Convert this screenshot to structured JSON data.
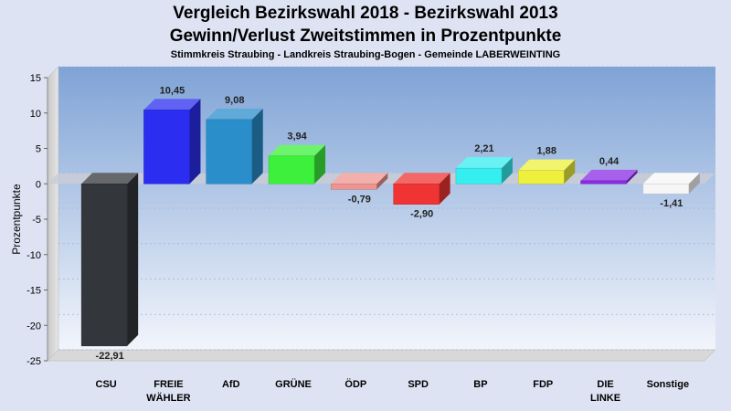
{
  "chart_data": {
    "type": "bar",
    "title": "Vergleich Bezirkswahl 2018 - Bezirkswahl 2013",
    "title2": "Gewinn/Verlust Zweitstimmen in Prozentpunkte",
    "subtitle": "Stimmkreis Straubing - Landkreis Straubing-Bogen - Gemeinde LABERWEINTING",
    "ylabel": "Prozentpunkte",
    "ylim": [
      -25,
      15
    ],
    "yticks": [
      15,
      10,
      5,
      0,
      -5,
      -10,
      -15,
      -20,
      -25
    ],
    "grid": true,
    "categories": [
      {
        "label": "CSU",
        "label2": ""
      },
      {
        "label": "FREIE",
        "label2": "WÄHLER"
      },
      {
        "label": "AfD",
        "label2": ""
      },
      {
        "label": "GRÜNE",
        "label2": ""
      },
      {
        "label": "ÖDP",
        "label2": ""
      },
      {
        "label": "SPD",
        "label2": ""
      },
      {
        "label": "BP",
        "label2": ""
      },
      {
        "label": "FDP",
        "label2": ""
      },
      {
        "label": "DIE",
        "label2": "LINKE"
      },
      {
        "label": "Sonstige",
        "label2": ""
      }
    ],
    "values": [
      -22.91,
      10.45,
      9.08,
      3.94,
      -0.79,
      -2.9,
      2.21,
      1.88,
      0.44,
      -1.41
    ],
    "value_labels": [
      "-22,91",
      "10,45",
      "9,08",
      "3,94",
      "-0,79",
      "-2,90",
      "2,21",
      "1,88",
      "0,44",
      "-1,41"
    ],
    "colors": [
      "#33363b",
      "#2b2ef0",
      "#2a8ecb",
      "#3cf03c",
      "#ee9490",
      "#f03434",
      "#35eef0",
      "#eef03c",
      "#8a2be2",
      "#f6f6f6"
    ]
  }
}
